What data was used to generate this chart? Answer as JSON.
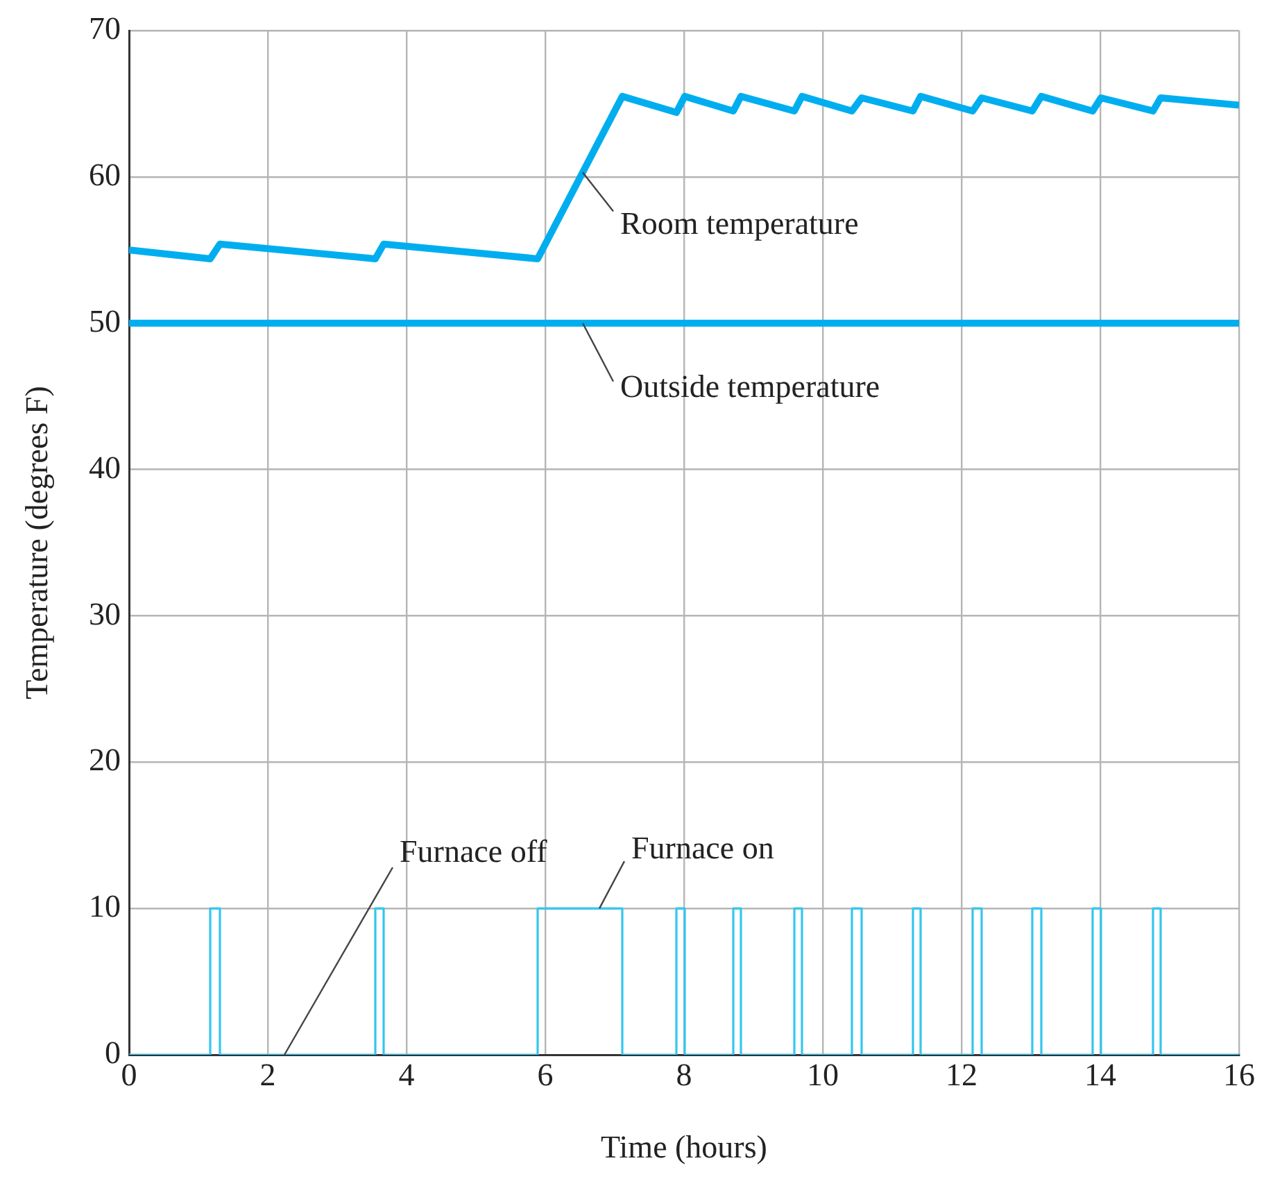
{
  "chart_data": {
    "type": "line",
    "xlabel": "Time (hours)",
    "ylabel": "Temperature (degrees F)",
    "xlim": [
      0,
      16
    ],
    "xticks": [
      0,
      2,
      4,
      6,
      8,
      10,
      12,
      14,
      16
    ],
    "ylim": [
      0,
      70
    ],
    "yticks": [
      0,
      10,
      20,
      30,
      40,
      50,
      60,
      70
    ],
    "grid": true,
    "legend": false,
    "marker": "none",
    "series": [
      {
        "type": "line",
        "color": "#00aeef",
        "x": [
          0,
          1.17,
          1.31,
          3.55,
          3.67,
          5.89,
          7.11,
          7.89,
          8.01,
          8.71,
          8.82,
          9.59,
          9.7,
          10.42,
          10.56,
          11.3,
          11.41,
          12.16,
          12.29,
          13.02,
          13.15,
          13.89,
          14.01,
          14.76,
          14.87,
          16
        ],
        "values": [
          55,
          54.4,
          55.4,
          54.4,
          55.4,
          54.4,
          65.5,
          64.4,
          65.5,
          64.5,
          65.5,
          64.5,
          65.5,
          64.5,
          65.4,
          64.5,
          65.5,
          64.5,
          65.4,
          64.5,
          65.5,
          64.5,
          65.4,
          64.5,
          65.4,
          64.9
        ]
      },
      {
        "type": "line",
        "color": "#00aeef",
        "x": [
          0,
          16
        ],
        "values": [
          50,
          50
        ]
      },
      {
        "type": "step",
        "color": "#33c6f0",
        "x": [
          0,
          1.17,
          1.31,
          3.55,
          3.67,
          5.89,
          7.11,
          7.89,
          8.01,
          8.71,
          8.82,
          9.59,
          9.7,
          10.42,
          10.56,
          11.3,
          11.41,
          12.16,
          12.29,
          13.02,
          13.15,
          13.89,
          14.01,
          14.76,
          14.87,
          16
        ],
        "values": [
          0,
          10,
          0,
          10,
          0,
          10,
          0,
          10,
          0,
          10,
          0,
          10,
          0,
          10,
          0,
          10,
          0,
          10,
          0,
          10,
          0,
          10,
          0,
          10,
          0,
          0
        ]
      }
    ],
    "annotations": [
      {
        "text": "Room temperature",
        "x": 6.54,
        "y": 60.3
      },
      {
        "text": "Outside temperature",
        "x": 6.54,
        "y": 50
      },
      {
        "text": "Furnace off",
        "x": 2.24,
        "y": 0
      },
      {
        "text": "Furnace on",
        "x": 6.78,
        "y": 10
      }
    ]
  }
}
